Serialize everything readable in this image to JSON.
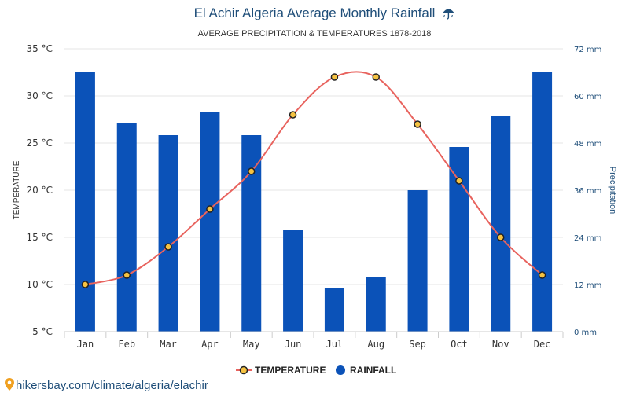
{
  "chart_data": {
    "type": "bar",
    "title": "El Achir Algeria Average Monthly Rainfall",
    "title_icon": "umbrella-rain-icon",
    "subtitle": "AVERAGE PRECIPITATION & TEMPERATURES 1878-2018",
    "categories": [
      "Jan",
      "Feb",
      "Mar",
      "Apr",
      "May",
      "Jun",
      "Jul",
      "Aug",
      "Sep",
      "Oct",
      "Nov",
      "Dec"
    ],
    "series": [
      {
        "name": "TEMPERATURE",
        "type": "line",
        "axis": "left",
        "values": [
          10,
          11,
          14,
          18,
          22,
          28,
          32,
          32,
          27,
          21,
          15,
          11
        ]
      },
      {
        "name": "RAINFALL",
        "type": "bar",
        "axis": "right",
        "values": [
          66,
          53,
          50,
          56,
          50,
          26,
          11,
          14,
          36,
          47,
          55,
          66
        ]
      }
    ],
    "ylabel_left": "TEMPERATURE",
    "ylabel_right": "Precipitation",
    "ylim_left": [
      5,
      35
    ],
    "ylim_right": [
      0,
      72
    ],
    "yticks_left": [
      "5 °C",
      "10 °C",
      "15 °C",
      "20 °C",
      "25 °C",
      "30 °C",
      "35 °C"
    ],
    "yticks_right": [
      "0 mm",
      "12 mm",
      "24 mm",
      "36 mm",
      "48 mm",
      "60 mm",
      "72 mm"
    ],
    "grid": true,
    "legend_position": "bottom-center",
    "colors": {
      "bar": "#0b52b8",
      "line": "#e8635e",
      "marker_fill": "#f5c242",
      "marker_stroke": "#222222",
      "grid": "#e6e6e6",
      "title": "#1f4e79"
    }
  },
  "source": {
    "icon": "location-pin-icon",
    "text": "hikersbay.com/climate/algeria/elachir"
  }
}
